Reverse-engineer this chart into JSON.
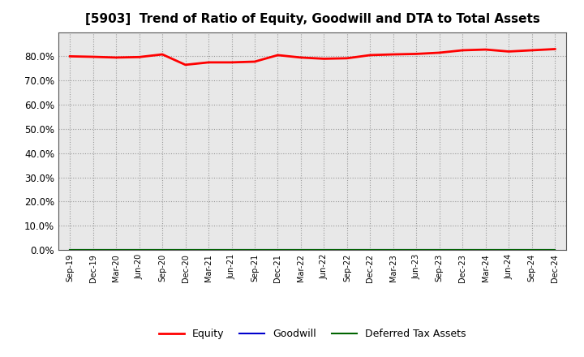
{
  "title": "[5903]  Trend of Ratio of Equity, Goodwill and DTA to Total Assets",
  "x_labels": [
    "Sep-19",
    "Dec-19",
    "Mar-20",
    "Jun-20",
    "Sep-20",
    "Dec-20",
    "Mar-21",
    "Jun-21",
    "Sep-21",
    "Dec-21",
    "Mar-22",
    "Jun-22",
    "Sep-22",
    "Dec-22",
    "Mar-23",
    "Jun-23",
    "Sep-23",
    "Dec-23",
    "Mar-24",
    "Jun-24",
    "Sep-24",
    "Dec-24"
  ],
  "equity": [
    80.0,
    79.8,
    79.5,
    79.7,
    80.8,
    76.5,
    77.5,
    77.5,
    77.8,
    80.5,
    79.5,
    79.0,
    79.2,
    80.5,
    80.8,
    81.0,
    81.5,
    82.5,
    82.8,
    82.0,
    82.5,
    83.0
  ],
  "goodwill": [
    0.0,
    0.0,
    0.0,
    0.0,
    0.0,
    0.0,
    0.0,
    0.0,
    0.0,
    0.0,
    0.0,
    0.0,
    0.0,
    0.0,
    0.0,
    0.0,
    0.0,
    0.0,
    0.0,
    0.0,
    0.0,
    0.0
  ],
  "dta": [
    0.0,
    0.0,
    0.0,
    0.0,
    0.0,
    0.0,
    0.0,
    0.0,
    0.0,
    0.0,
    0.0,
    0.0,
    0.0,
    0.0,
    0.0,
    0.0,
    0.0,
    0.0,
    0.0,
    0.0,
    0.0,
    0.0
  ],
  "equity_color": "#ff0000",
  "goodwill_color": "#0000cd",
  "dta_color": "#006400",
  "ylim": [
    0,
    90
  ],
  "yticks": [
    0,
    10,
    20,
    30,
    40,
    50,
    60,
    70,
    80
  ],
  "background_color": "#ffffff",
  "plot_bg_color": "#e8e8e8",
  "grid_color": "#999999",
  "title_fontsize": 11,
  "legend_labels": [
    "Equity",
    "Goodwill",
    "Deferred Tax Assets"
  ]
}
